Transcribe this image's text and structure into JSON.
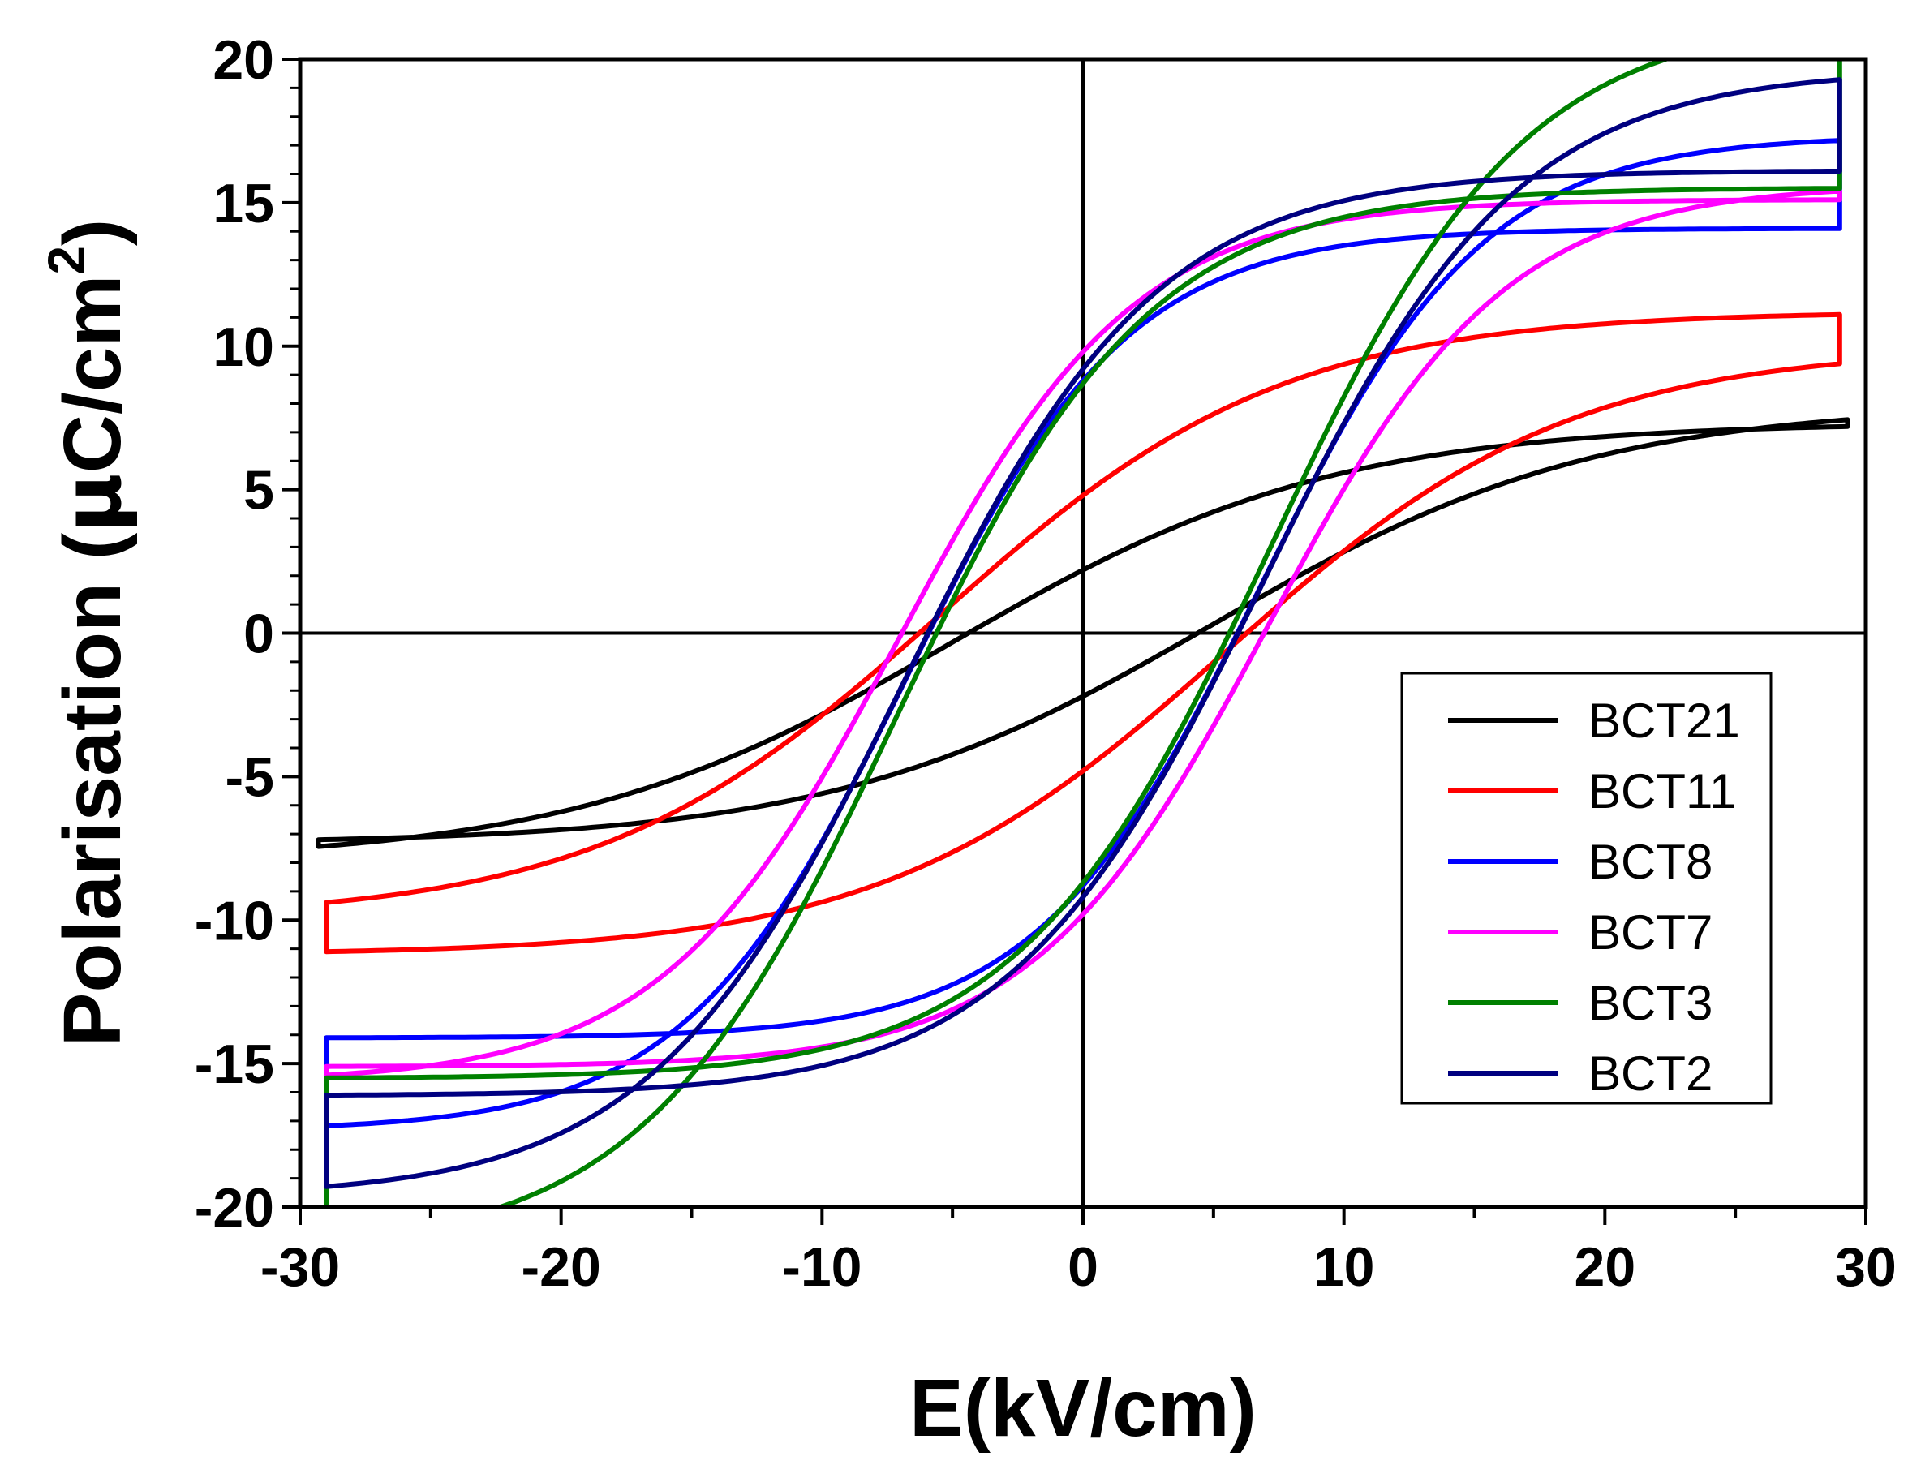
{
  "chart_data": {
    "type": "line",
    "title": "",
    "xlabel": "E(kV/cm)",
    "ylabel": {
      "prefix": "Polarisation (",
      "mu": "μ",
      "unit": "C/cm",
      "sup": "2",
      "suffix": ")"
    },
    "xlim": [
      -30,
      30
    ],
    "ylim": [
      -20,
      20
    ],
    "xticks": [
      -30,
      -20,
      -10,
      0,
      10,
      20,
      30
    ],
    "yticks": [
      -20,
      -15,
      -10,
      -5,
      0,
      5,
      10,
      15,
      20
    ],
    "xtick_labels": [
      "-30",
      "-20",
      "-10",
      "0",
      "10",
      "20",
      "30"
    ],
    "ytick_labels": [
      "-20",
      "-15",
      "-10",
      "-5",
      "0",
      "5",
      "10",
      "15",
      "20"
    ],
    "legend_position": "right",
    "series": [
      {
        "name": "BCT21",
        "color": "#000000",
        "Emax": 29.3,
        "Pmax": 7.2,
        "Pr": 2.2,
        "Ec": 5.0,
        "sharpness": 2.0
      },
      {
        "name": "BCT11",
        "color": "#ff0000",
        "Emax": 29.0,
        "Pmax": 11.1,
        "Pr": 4.8,
        "Ec": 5.5,
        "sharpness": 2.2
      },
      {
        "name": "BCT8",
        "color": "#0000ff",
        "Emax": 29.0,
        "Pmax": 14.1,
        "Pr": 8.8,
        "Ec": 6.8,
        "sharpness": 3.4
      },
      {
        "name": "BCT7",
        "color": "#ff00ff",
        "Emax": 29.0,
        "Pmax": 15.1,
        "Pr": 9.8,
        "Ec": 7.1,
        "sharpness": 3.2
      },
      {
        "name": "BCT3",
        "color": "#008000",
        "Emax": 29.0,
        "Pmax": 15.5,
        "Pr": 8.7,
        "Ec": 7.2,
        "sharpness": 3.0
      },
      {
        "name": "BCT2",
        "color": "#000080",
        "Emax": 29.0,
        "Pmax": 16.1,
        "Pr": 9.2,
        "Ec": 6.9,
        "sharpness": 3.0
      }
    ]
  }
}
